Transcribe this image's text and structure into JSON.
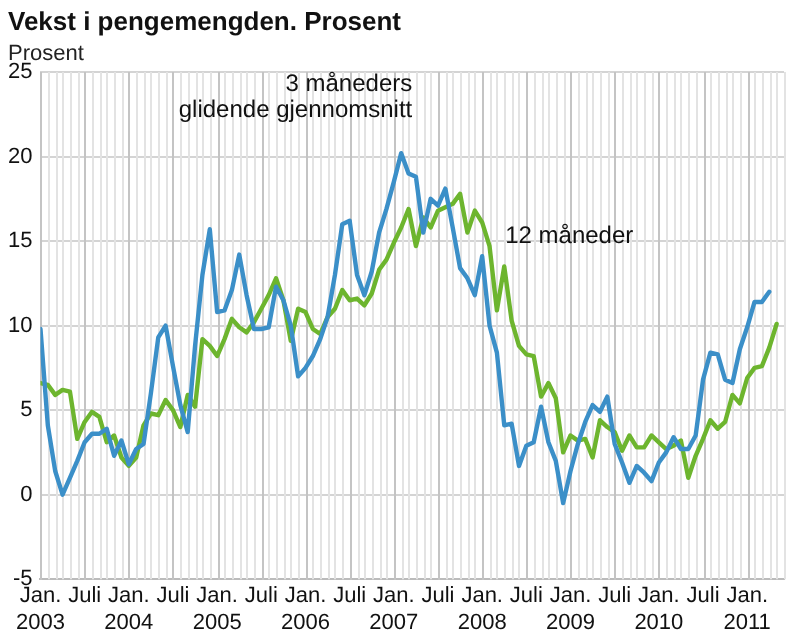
{
  "chart_data": {
    "type": "line",
    "title": "Vekst i pengemengden. Prosent",
    "ylabel": "Prosent",
    "x": [
      "2003-01",
      "2003-02",
      "2003-03",
      "2003-04",
      "2003-05",
      "2003-06",
      "2003-07",
      "2003-08",
      "2003-09",
      "2003-10",
      "2003-11",
      "2003-12",
      "2004-01",
      "2004-02",
      "2004-03",
      "2004-04",
      "2004-05",
      "2004-06",
      "2004-07",
      "2004-08",
      "2004-09",
      "2004-10",
      "2004-11",
      "2004-12",
      "2005-01",
      "2005-02",
      "2005-03",
      "2005-04",
      "2005-05",
      "2005-06",
      "2005-07",
      "2005-08",
      "2005-09",
      "2005-10",
      "2005-11",
      "2005-12",
      "2006-01",
      "2006-02",
      "2006-03",
      "2006-04",
      "2006-05",
      "2006-06",
      "2006-07",
      "2006-08",
      "2006-09",
      "2006-10",
      "2006-11",
      "2006-12",
      "2007-01",
      "2007-02",
      "2007-03",
      "2007-04",
      "2007-05",
      "2007-06",
      "2007-07",
      "2007-08",
      "2007-09",
      "2007-10",
      "2007-11",
      "2007-12",
      "2008-01",
      "2008-02",
      "2008-03",
      "2008-04",
      "2008-05",
      "2008-06",
      "2008-07",
      "2008-08",
      "2008-09",
      "2008-10",
      "2008-11",
      "2008-12",
      "2009-01",
      "2009-02",
      "2009-03",
      "2009-04",
      "2009-05",
      "2009-06",
      "2009-07",
      "2009-08",
      "2009-09",
      "2009-10",
      "2009-11",
      "2009-12",
      "2010-01",
      "2010-02",
      "2010-03",
      "2010-04",
      "2010-05",
      "2010-06",
      "2010-07",
      "2010-08",
      "2010-09",
      "2010-10",
      "2010-11",
      "2010-12",
      "2011-01",
      "2011-02",
      "2011-03",
      "2011-04",
      "2011-05"
    ],
    "series": [
      {
        "name": "3 måneders glidende gjennomsnitt",
        "color": "#3b8fc8",
        "values": [
          9.8,
          4.1,
          1.4,
          0,
          1.0,
          2.0,
          3.1,
          3.6,
          3.6,
          3.9,
          2.3,
          3.2,
          1.8,
          2.7,
          3.0,
          6.0,
          9.3,
          10.0,
          7.6,
          5.3,
          3.7,
          8.8,
          13.0,
          15.7,
          10.8,
          10.9,
          12.1,
          14.2,
          11.8,
          9.8,
          9.8,
          9.9,
          12.3,
          11.5,
          10.0,
          7.0,
          7.5,
          8.2,
          9.2,
          10.5,
          13.0,
          16.0,
          16.2,
          13.0,
          11.8,
          13.2,
          15.5,
          16.9,
          18.5,
          20.2,
          19.0,
          18.8,
          15.5,
          17.5,
          17.1,
          18.1,
          15.8,
          13.4,
          12.8,
          11.8,
          14.1,
          10.0,
          8.4,
          4.1,
          4.2,
          1.7,
          2.9,
          3.1,
          5.2,
          3.1,
          2.0,
          -0.5,
          1.4,
          3.0,
          4.3,
          5.3,
          4.9,
          5.8,
          3.0,
          1.9,
          0.7,
          1.7,
          1.3,
          0.8,
          1.9,
          2.5,
          3.4,
          2.7,
          2.7,
          3.5,
          6.8,
          8.4,
          8.3,
          6.8,
          6.6,
          8.6,
          9.9,
          11.4,
          11.4,
          12.0,
          null
        ]
      },
      {
        "name": "12 måneder",
        "color": "#6db52e",
        "values": [
          6.6,
          6.5,
          5.9,
          6.2,
          6.1,
          3.3,
          4.3,
          4.9,
          4.6,
          3.1,
          3.5,
          2.2,
          1.7,
          2.2,
          4.1,
          4.8,
          4.7,
          5.6,
          5.0,
          4.0,
          5.9,
          5.2,
          9.2,
          8.8,
          8.2,
          9.2,
          10.4,
          9.9,
          9.6,
          10.2,
          11.0,
          11.8,
          12.8,
          11.5,
          9.1,
          11.0,
          10.8,
          9.8,
          9.5,
          10.5,
          11.0,
          12.1,
          11.5,
          11.6,
          11.2,
          11.9,
          13.3,
          13.9,
          14.9,
          15.8,
          16.9,
          14.7,
          16.4,
          15.8,
          16.8,
          17.0,
          17.2,
          17.8,
          15.5,
          16.8,
          16.1,
          14.7,
          10.9,
          13.5,
          10.3,
          8.8,
          8.3,
          8.2,
          5.8,
          6.6,
          5.7,
          2.5,
          3.5,
          3.2,
          3.3,
          2.2,
          4.4,
          4.0,
          3.7,
          2.6,
          3.5,
          2.8,
          2.8,
          3.5,
          3.1,
          2.7,
          2.9,
          3.2,
          1.0,
          2.3,
          3.3,
          4.4,
          3.9,
          4.3,
          5.9,
          5.4,
          6.9,
          7.5,
          7.6,
          8.7,
          10.1
        ]
      }
    ],
    "xlim": [
      "2003-01",
      "2011-06"
    ],
    "xticks": [
      {
        "value": "2003-01",
        "label": "Jan. 2003"
      },
      {
        "value": "2003-07",
        "label": "Juli"
      },
      {
        "value": "2004-01",
        "label": "Jan. 2004"
      },
      {
        "value": "2004-07",
        "label": "Juli"
      },
      {
        "value": "2005-01",
        "label": "Jan. 2005"
      },
      {
        "value": "2005-07",
        "label": "Juli"
      },
      {
        "value": "2006-01",
        "label": "Jan. 2006"
      },
      {
        "value": "2006-07",
        "label": "Juli"
      },
      {
        "value": "2007-01",
        "label": "Jan. 2007"
      },
      {
        "value": "2007-07",
        "label": "Juli"
      },
      {
        "value": "2008-01",
        "label": "Jan. 2008"
      },
      {
        "value": "2008-07",
        "label": "Juli"
      },
      {
        "value": "2009-01",
        "label": "Jan. 2009"
      },
      {
        "value": "2009-07",
        "label": "Juli"
      },
      {
        "value": "2010-01",
        "label": "Jan. 2010"
      },
      {
        "value": "2010-07",
        "label": "Juli"
      },
      {
        "value": "2011-01",
        "label": "Jan. 2011"
      }
    ],
    "ylim": [
      -5,
      25
    ],
    "yticks": [
      -5,
      0,
      5,
      10,
      15,
      20,
      25
    ],
    "grid": true,
    "legend": false,
    "marker": "none",
    "line_style": "solid"
  }
}
